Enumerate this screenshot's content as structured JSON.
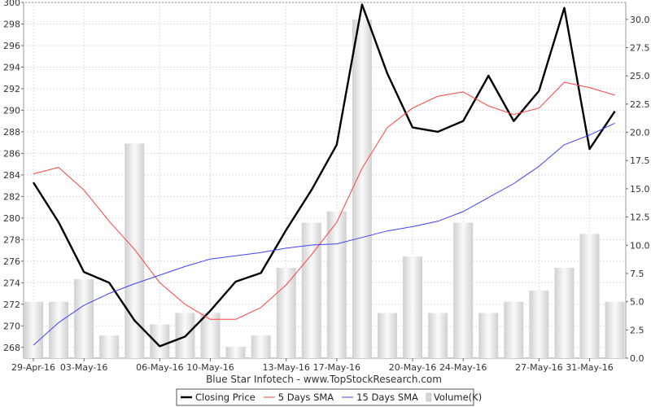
{
  "chart_data": {
    "type": "line",
    "caption": "Blue Star Infotech - www.TopStockResearch.com",
    "dates": [
      "29-Apr-16",
      "02-May-16",
      "03-May-16",
      "04-May-16",
      "05-May-16",
      "06-May-16",
      "09-May-16",
      "10-May-16",
      "11-May-16",
      "12-May-16",
      "13-May-16",
      "16-May-16",
      "17-May-16",
      "18-May-16",
      "19-May-16",
      "20-May-16",
      "23-May-16",
      "24-May-16",
      "25-May-16",
      "26-May-16",
      "27-May-16",
      "30-May-16",
      "31-May-16",
      "01-Jun-16"
    ],
    "x_tick_labels": [
      "29-Apr-16",
      "03-May-16",
      "06-May-16",
      "10-May-16",
      "13-May-16",
      "17-May-16",
      "20-May-16",
      "24-May-16",
      "27-May-16",
      "31-May-16"
    ],
    "left_axis": {
      "min": 267,
      "max": 300,
      "ticks": [
        268,
        270,
        272,
        274,
        276,
        278,
        280,
        282,
        284,
        286,
        288,
        290,
        292,
        294,
        296,
        298,
        300
      ]
    },
    "right_axis": {
      "min": 0,
      "max": 31.5,
      "ticks": [
        "0.0",
        "2.5",
        "5.0",
        "7.5",
        "10.0",
        "12.5",
        "15.0",
        "17.5",
        "20.0",
        "22.5",
        "25.0",
        "27.5",
        "30.0"
      ]
    },
    "series": [
      {
        "name": "Closing Price",
        "axis": "left",
        "color": "#000000",
        "values": [
          283.3,
          279.6,
          275.0,
          274.0,
          270.5,
          268.1,
          269.0,
          271.4,
          274.1,
          274.9,
          278.9,
          282.6,
          286.8,
          299.8,
          293.4,
          288.4,
          288.0,
          289.0,
          293.2,
          289.0,
          291.8,
          299.5,
          286.4,
          289.9
        ]
      },
      {
        "name": "5 Days SMA",
        "axis": "left",
        "color": "#ff4040",
        "values": [
          284.1,
          284.7,
          282.6,
          279.7,
          277.1,
          274.0,
          272.0,
          270.6,
          270.6,
          271.7,
          273.8,
          276.6,
          279.6,
          284.6,
          288.4,
          290.2,
          291.3,
          291.7,
          290.4,
          289.6,
          290.2,
          292.6,
          292.1,
          291.4
        ]
      },
      {
        "name": "15 Days SMA",
        "axis": "left",
        "color": "#4040ff",
        "values": [
          268.2,
          270.3,
          271.9,
          273.0,
          273.9,
          274.7,
          275.5,
          276.2,
          276.5,
          276.8,
          277.2,
          277.5,
          277.6,
          278.2,
          278.8,
          279.2,
          279.7,
          280.6,
          281.9,
          283.2,
          284.8,
          286.8,
          287.7,
          288.8
        ]
      },
      {
        "name": "Volume(K)",
        "axis": "right",
        "color": "#e0e0e0",
        "render": "bar",
        "values": [
          5,
          5,
          7,
          2,
          19,
          3,
          4,
          4,
          1,
          2,
          8,
          12,
          13,
          30,
          4,
          9,
          4,
          12,
          4,
          5,
          6,
          8,
          11,
          5
        ]
      }
    ],
    "grid": true,
    "legend_position": "bottom-center"
  }
}
